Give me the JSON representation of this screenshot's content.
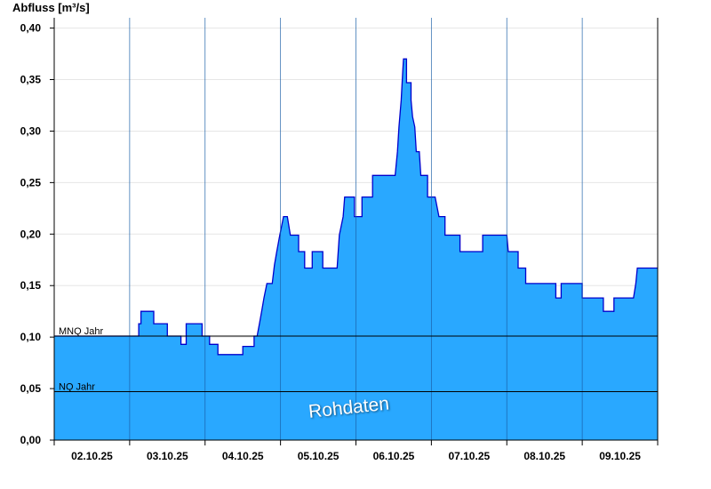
{
  "chart_data": {
    "type": "area",
    "ylabel": "Abfluss [m³/s]",
    "ylim": [
      0,
      0.41
    ],
    "yticks": [
      0,
      0.05,
      0.1,
      0.15,
      0.2,
      0.25,
      0.3,
      0.35,
      0.4
    ],
    "ytick_labels": [
      "0,00",
      "0,05",
      "0,10",
      "0,15",
      "0,20",
      "0,25",
      "0,30",
      "0,35",
      "0,40"
    ],
    "xlim": [
      0,
      8
    ],
    "day_boundaries": [
      1,
      2,
      3,
      4,
      5,
      6,
      7
    ],
    "date_labels": [
      "02.10.25",
      "03.10.25",
      "04.10.25",
      "05.10.25",
      "06.10.25",
      "07.10.25",
      "08.10.25",
      "09.10.25"
    ],
    "grid": true,
    "fill_color": "#29a8ff",
    "line_color": "#0000cc",
    "reference_lines": [
      {
        "label": "MNQ Jahr",
        "value": 0.101
      },
      {
        "label": "NQ Jahr",
        "value": 0.047
      }
    ],
    "watermark": "Rohdaten",
    "series": [
      {
        "values": [
          [
            0.0,
            0.101
          ],
          [
            1.12,
            0.101
          ],
          [
            1.12,
            0.113
          ],
          [
            1.15,
            0.113
          ],
          [
            1.15,
            0.125
          ],
          [
            1.32,
            0.125
          ],
          [
            1.32,
            0.113
          ],
          [
            1.5,
            0.113
          ],
          [
            1.5,
            0.101
          ],
          [
            1.68,
            0.101
          ],
          [
            1.68,
            0.093
          ],
          [
            1.75,
            0.093
          ],
          [
            1.75,
            0.113
          ],
          [
            1.96,
            0.113
          ],
          [
            1.96,
            0.101
          ],
          [
            2.06,
            0.101
          ],
          [
            2.06,
            0.093
          ],
          [
            2.17,
            0.093
          ],
          [
            2.17,
            0.083
          ],
          [
            2.5,
            0.083
          ],
          [
            2.5,
            0.091
          ],
          [
            2.65,
            0.091
          ],
          [
            2.65,
            0.101
          ],
          [
            2.69,
            0.101
          ],
          [
            2.72,
            0.113
          ],
          [
            2.75,
            0.125
          ],
          [
            2.78,
            0.138
          ],
          [
            2.82,
            0.152
          ],
          [
            2.89,
            0.152
          ],
          [
            2.92,
            0.17
          ],
          [
            2.95,
            0.183
          ],
          [
            2.99,
            0.199
          ],
          [
            3.04,
            0.217
          ],
          [
            3.09,
            0.217
          ],
          [
            3.13,
            0.199
          ],
          [
            3.24,
            0.199
          ],
          [
            3.24,
            0.183
          ],
          [
            3.32,
            0.183
          ],
          [
            3.32,
            0.167
          ],
          [
            3.42,
            0.167
          ],
          [
            3.42,
            0.183
          ],
          [
            3.56,
            0.183
          ],
          [
            3.56,
            0.167
          ],
          [
            3.75,
            0.167
          ],
          [
            3.78,
            0.199
          ],
          [
            3.83,
            0.217
          ],
          [
            3.85,
            0.236
          ],
          [
            3.98,
            0.236
          ],
          [
            3.98,
            0.217
          ],
          [
            4.08,
            0.217
          ],
          [
            4.08,
            0.236
          ],
          [
            4.22,
            0.236
          ],
          [
            4.22,
            0.257
          ],
          [
            4.52,
            0.257
          ],
          [
            4.55,
            0.28
          ],
          [
            4.57,
            0.304
          ],
          [
            4.6,
            0.33
          ],
          [
            4.62,
            0.357
          ],
          [
            4.63,
            0.37
          ],
          [
            4.67,
            0.37
          ],
          [
            4.67,
            0.347
          ],
          [
            4.73,
            0.347
          ],
          [
            4.73,
            0.33
          ],
          [
            4.75,
            0.314
          ],
          [
            4.78,
            0.304
          ],
          [
            4.8,
            0.28
          ],
          [
            4.84,
            0.28
          ],
          [
            4.86,
            0.257
          ],
          [
            4.95,
            0.257
          ],
          [
            4.95,
            0.236
          ],
          [
            5.05,
            0.236
          ],
          [
            5.1,
            0.217
          ],
          [
            5.18,
            0.217
          ],
          [
            5.18,
            0.199
          ],
          [
            5.38,
            0.199
          ],
          [
            5.38,
            0.183
          ],
          [
            5.68,
            0.183
          ],
          [
            5.68,
            0.199
          ],
          [
            6.0,
            0.199
          ],
          [
            6.02,
            0.183
          ],
          [
            6.15,
            0.183
          ],
          [
            6.15,
            0.167
          ],
          [
            6.25,
            0.167
          ],
          [
            6.25,
            0.152
          ],
          [
            6.65,
            0.152
          ],
          [
            6.65,
            0.138
          ],
          [
            6.72,
            0.138
          ],
          [
            6.72,
            0.152
          ],
          [
            7.0,
            0.152
          ],
          [
            7.0,
            0.138
          ],
          [
            7.28,
            0.138
          ],
          [
            7.28,
            0.125
          ],
          [
            7.42,
            0.125
          ],
          [
            7.42,
            0.138
          ],
          [
            7.68,
            0.138
          ],
          [
            7.71,
            0.152
          ],
          [
            7.73,
            0.167
          ],
          [
            8.0,
            0.167
          ]
        ]
      }
    ]
  }
}
